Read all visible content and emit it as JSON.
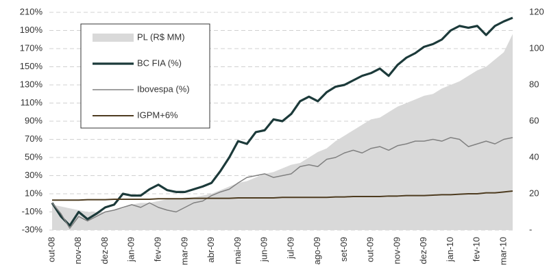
{
  "chart_data": {
    "type": "line",
    "categories": [
      "out-08",
      null,
      null,
      "nov-08",
      null,
      null,
      "dez-08",
      null,
      null,
      "jan-09",
      null,
      null,
      "fev-09",
      null,
      null,
      "mar-09",
      null,
      null,
      "abr-09",
      null,
      null,
      "mai-09",
      null,
      null,
      "jun-09",
      null,
      null,
      "jul-09",
      null,
      null,
      "ago-09",
      null,
      null,
      "set-09",
      null,
      null,
      "out-09",
      null,
      null,
      "nov-09",
      null,
      null,
      "dez-09",
      null,
      null,
      "jan-10",
      null,
      null,
      "fev-10",
      null,
      null,
      "mar-10",
      null
    ],
    "series": [
      {
        "name": "PL (R$ MM)",
        "color": "#d9d9d9",
        "style": "area",
        "axis": "y2",
        "values": [
          14,
          13,
          12,
          11,
          10,
          10,
          10,
          11,
          12,
          14,
          15,
          15,
          16,
          17,
          17,
          18,
          18,
          19,
          20,
          22,
          24,
          26,
          27,
          29,
          31,
          32,
          34,
          36,
          37,
          40,
          43,
          45,
          49,
          52,
          55,
          58,
          61,
          62,
          65,
          68,
          70,
          72,
          74,
          75,
          78,
          80,
          82,
          85,
          88,
          90,
          94,
          98,
          108
        ]
      },
      {
        "name": "BC FIA (%)",
        "color": "#1c3a3a",
        "style": "thick",
        "values": [
          0,
          -15,
          -25,
          -10,
          -18,
          -12,
          -5,
          -2,
          10,
          8,
          8,
          15,
          20,
          14,
          12,
          12,
          15,
          18,
          22,
          35,
          50,
          68,
          65,
          78,
          80,
          92,
          90,
          98,
          112,
          117,
          112,
          122,
          128,
          130,
          135,
          140,
          143,
          148,
          140,
          152,
          160,
          165,
          172,
          175,
          180,
          190,
          195,
          193,
          195,
          185,
          195,
          200,
          204
        ]
      },
      {
        "name": "Ibovespa (%)",
        "color": "#808080",
        "style": "thin",
        "values": [
          0,
          -12,
          -28,
          -15,
          -20,
          -15,
          -10,
          -8,
          -5,
          -2,
          -5,
          0,
          -5,
          -8,
          -10,
          -5,
          0,
          2,
          8,
          12,
          15,
          22,
          28,
          30,
          32,
          28,
          30,
          32,
          40,
          42,
          40,
          48,
          50,
          55,
          58,
          55,
          60,
          62,
          58,
          63,
          65,
          68,
          68,
          70,
          68,
          72,
          70,
          62,
          65,
          68,
          65,
          70,
          72
        ]
      },
      {
        "name": "IGPM+6%",
        "color": "#4d3b1f",
        "style": "medium",
        "values": [
          3,
          3,
          3,
          3,
          3.5,
          3.5,
          3.5,
          4,
          4,
          4,
          4,
          4,
          4.5,
          4.5,
          4.5,
          4.5,
          5,
          5,
          5,
          5,
          5,
          5.5,
          5.5,
          5.5,
          5.5,
          5.5,
          6,
          6,
          6,
          6,
          6,
          6,
          6.5,
          6.5,
          7,
          7,
          7,
          7,
          7.5,
          7.5,
          8,
          8,
          8,
          8.5,
          9,
          9,
          9.5,
          10,
          10,
          11,
          11,
          12,
          13
        ]
      }
    ],
    "ylim": [
      -30,
      210
    ],
    "yticks": [
      {
        "value": -30,
        "label": "-30%"
      },
      {
        "value": -10,
        "label": "-10%"
      },
      {
        "value": 10,
        "label": "10%"
      },
      {
        "value": 30,
        "label": "30%"
      },
      {
        "value": 50,
        "label": "50%"
      },
      {
        "value": 70,
        "label": "70%"
      },
      {
        "value": 90,
        "label": "90%"
      },
      {
        "value": 110,
        "label": "110%"
      },
      {
        "value": 130,
        "label": "130%"
      },
      {
        "value": 150,
        "label": "150%"
      },
      {
        "value": 170,
        "label": "170%"
      },
      {
        "value": 190,
        "label": "190%"
      },
      {
        "value": 210,
        "label": "210%"
      }
    ],
    "y2lim": [
      0,
      120
    ],
    "y2ticks": [
      {
        "value": 0,
        "label": "-"
      },
      20,
      40,
      60,
      80,
      100,
      120
    ],
    "grid": true
  }
}
